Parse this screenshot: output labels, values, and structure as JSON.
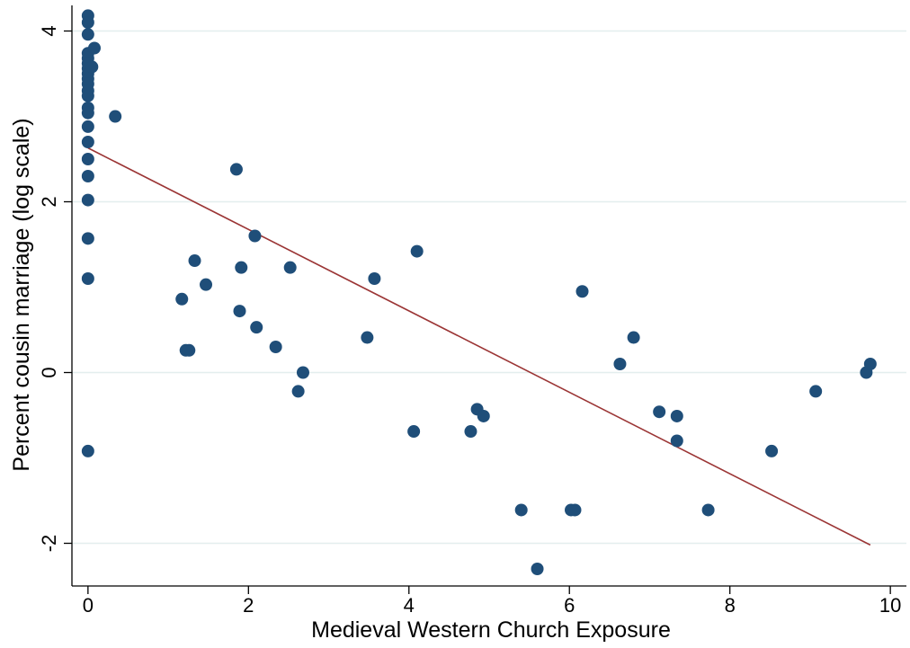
{
  "chart_data": {
    "type": "scatter",
    "title": "",
    "xlabel": "Medieval Western Church Exposure",
    "ylabel": "Percent cousin marriage (log scale)",
    "xlim": [
      -0.2,
      10.2
    ],
    "ylim": [
      -2.5,
      4.3
    ],
    "xticks": [
      0,
      2,
      4,
      6,
      8,
      10
    ],
    "xtick_labels": [
      "0",
      "2",
      "4",
      "6",
      "8",
      "10"
    ],
    "yticks": [
      -2,
      0,
      2,
      4
    ],
    "ytick_labels": [
      "-2",
      "0",
      "2",
      "4"
    ],
    "grid": "horizontal",
    "legend": "none",
    "colors": {
      "points": "#1f4e79",
      "fit_line": "#9b3535",
      "grid": "#e3eeee",
      "axis": "#000000"
    },
    "points": [
      {
        "x": 0.0,
        "y": 4.18
      },
      {
        "x": 0.0,
        "y": 4.1
      },
      {
        "x": 0.0,
        "y": 3.96
      },
      {
        "x": 0.0,
        "y": 3.74
      },
      {
        "x": 0.0,
        "y": 3.68
      },
      {
        "x": 0.0,
        "y": 3.62
      },
      {
        "x": 0.0,
        "y": 3.56
      },
      {
        "x": 0.0,
        "y": 3.5
      },
      {
        "x": 0.0,
        "y": 3.44
      },
      {
        "x": 0.0,
        "y": 3.38
      },
      {
        "x": 0.0,
        "y": 3.3
      },
      {
        "x": 0.0,
        "y": 3.24
      },
      {
        "x": 0.0,
        "y": 3.1
      },
      {
        "x": 0.0,
        "y": 3.04
      },
      {
        "x": 0.0,
        "y": 2.88
      },
      {
        "x": 0.0,
        "y": 2.7
      },
      {
        "x": 0.0,
        "y": 2.5
      },
      {
        "x": 0.0,
        "y": 2.3
      },
      {
        "x": 0.0,
        "y": 2.02
      },
      {
        "x": 0.0,
        "y": 1.57
      },
      {
        "x": 0.0,
        "y": 1.1
      },
      {
        "x": 0.0,
        "y": -0.92
      },
      {
        "x": 0.05,
        "y": 3.58
      },
      {
        "x": 0.08,
        "y": 3.8
      },
      {
        "x": 0.34,
        "y": 3.0
      },
      {
        "x": 1.17,
        "y": 0.86
      },
      {
        "x": 1.22,
        "y": 0.26
      },
      {
        "x": 1.26,
        "y": 0.26
      },
      {
        "x": 1.33,
        "y": 1.31
      },
      {
        "x": 1.47,
        "y": 1.03
      },
      {
        "x": 1.85,
        "y": 2.38
      },
      {
        "x": 1.89,
        "y": 0.72
      },
      {
        "x": 1.91,
        "y": 1.23
      },
      {
        "x": 2.08,
        "y": 1.6
      },
      {
        "x": 2.1,
        "y": 0.53
      },
      {
        "x": 2.34,
        "y": 0.3
      },
      {
        "x": 2.52,
        "y": 1.23
      },
      {
        "x": 2.62,
        "y": -0.22
      },
      {
        "x": 2.68,
        "y": 0.0
      },
      {
        "x": 3.48,
        "y": 0.41
      },
      {
        "x": 3.57,
        "y": 1.1
      },
      {
        "x": 4.06,
        "y": -0.69
      },
      {
        "x": 4.1,
        "y": 1.42
      },
      {
        "x": 4.77,
        "y": -0.69
      },
      {
        "x": 4.85,
        "y": -0.43
      },
      {
        "x": 4.93,
        "y": -0.51
      },
      {
        "x": 5.4,
        "y": -1.61
      },
      {
        "x": 5.6,
        "y": -2.3
      },
      {
        "x": 6.02,
        "y": -1.61
      },
      {
        "x": 6.07,
        "y": -1.61
      },
      {
        "x": 6.16,
        "y": 0.95
      },
      {
        "x": 6.63,
        "y": 0.1
      },
      {
        "x": 6.8,
        "y": 0.41
      },
      {
        "x": 7.12,
        "y": -0.46
      },
      {
        "x": 7.34,
        "y": -0.51
      },
      {
        "x": 7.34,
        "y": -0.8
      },
      {
        "x": 7.73,
        "y": -1.61
      },
      {
        "x": 8.52,
        "y": -0.92
      },
      {
        "x": 9.07,
        "y": -0.22
      },
      {
        "x": 9.7,
        "y": 0.0
      },
      {
        "x": 9.75,
        "y": 0.1
      }
    ],
    "fit_line": {
      "x": [
        0.0,
        9.75
      ],
      "y": [
        2.63,
        -2.02
      ]
    }
  }
}
